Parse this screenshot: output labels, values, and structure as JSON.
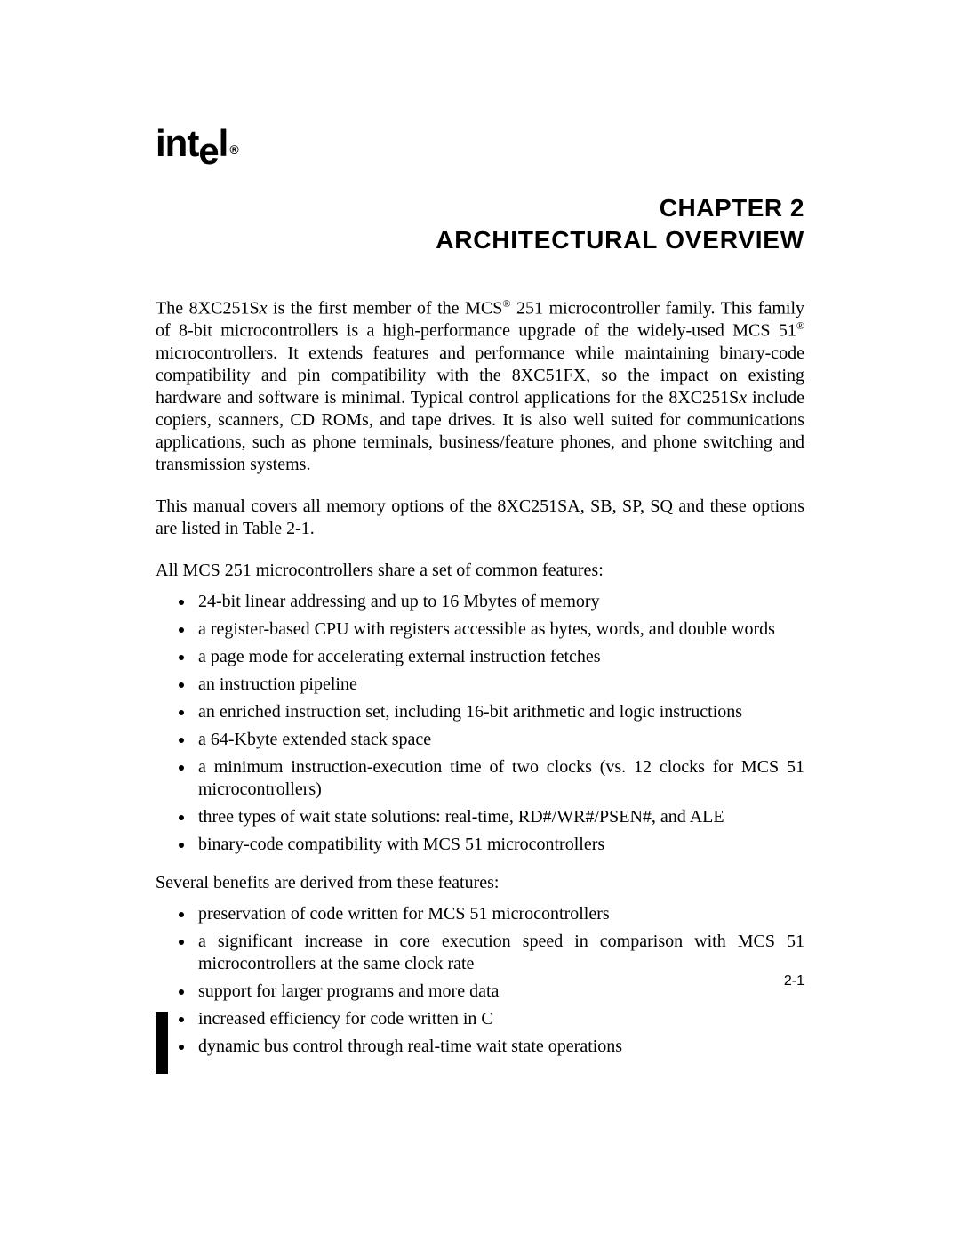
{
  "brand": {
    "name_prefix": "int",
    "name_dropped": "e",
    "name_suffix": "l",
    "register_mark": "®"
  },
  "chapter": {
    "line": "CHAPTER 2",
    "title": "ARCHITECTURAL OVERVIEW"
  },
  "para1": {
    "s1a": "The 8XC251S",
    "s1b": "x",
    "s1c": " is the first member of the MCS",
    "s1reg": "®",
    "s1d": " 251 microcontroller family. This family of 8-bit microcontrollers is a high-performance upgrade of the widely-used MCS 51",
    "s1reg2": "®",
    "s1e": " microcontrollers. It extends features and performance while maintaining binary-code compatibility and pin compatibility with the 8XC51FX, so the impact on existing hardware and software is minimal. Typical control applications for the 8XC251S",
    "s1f": "x",
    "s1g": " include copiers, scanners, CD ROMs, and tape drives. It is also well suited for communications applications, such as phone terminals, business/feature phones, and phone switching and transmission systems."
  },
  "para2": "This manual covers all memory options of the 8XC251SA, SB, SP, SQ and these options are listed in Table 2-1.",
  "lead1": "All MCS 251 microcontrollers share a set of common features:",
  "features": [
    "24-bit linear addressing and up to 16 Mbytes of memory",
    "a register-based CPU with registers accessible as bytes, words, and double words",
    "a page mode for accelerating external instruction fetches",
    "an instruction pipeline",
    "an enriched instruction set, including 16-bit arithmetic and logic instructions",
    "a 64-Kbyte extended stack space",
    "a minimum instruction-execution time of two clocks (vs. 12 clocks for MCS 51 microcontrollers)",
    "three types of wait state solutions: real-time, RD#/WR#/PSEN#, and ALE",
    "binary-code compatibility with MCS 51 microcontrollers"
  ],
  "lead2": "Several benefits are derived from these features:",
  "benefits": [
    "preservation of code written for MCS 51 microcontrollers",
    "a significant increase in core execution speed in comparison with MCS 51 microcontrollers at the same clock rate",
    "support for larger programs and more data",
    "increased efficiency for code written in C",
    "dynamic bus control through real-time wait state operations"
  ],
  "page_number": "2-1"
}
